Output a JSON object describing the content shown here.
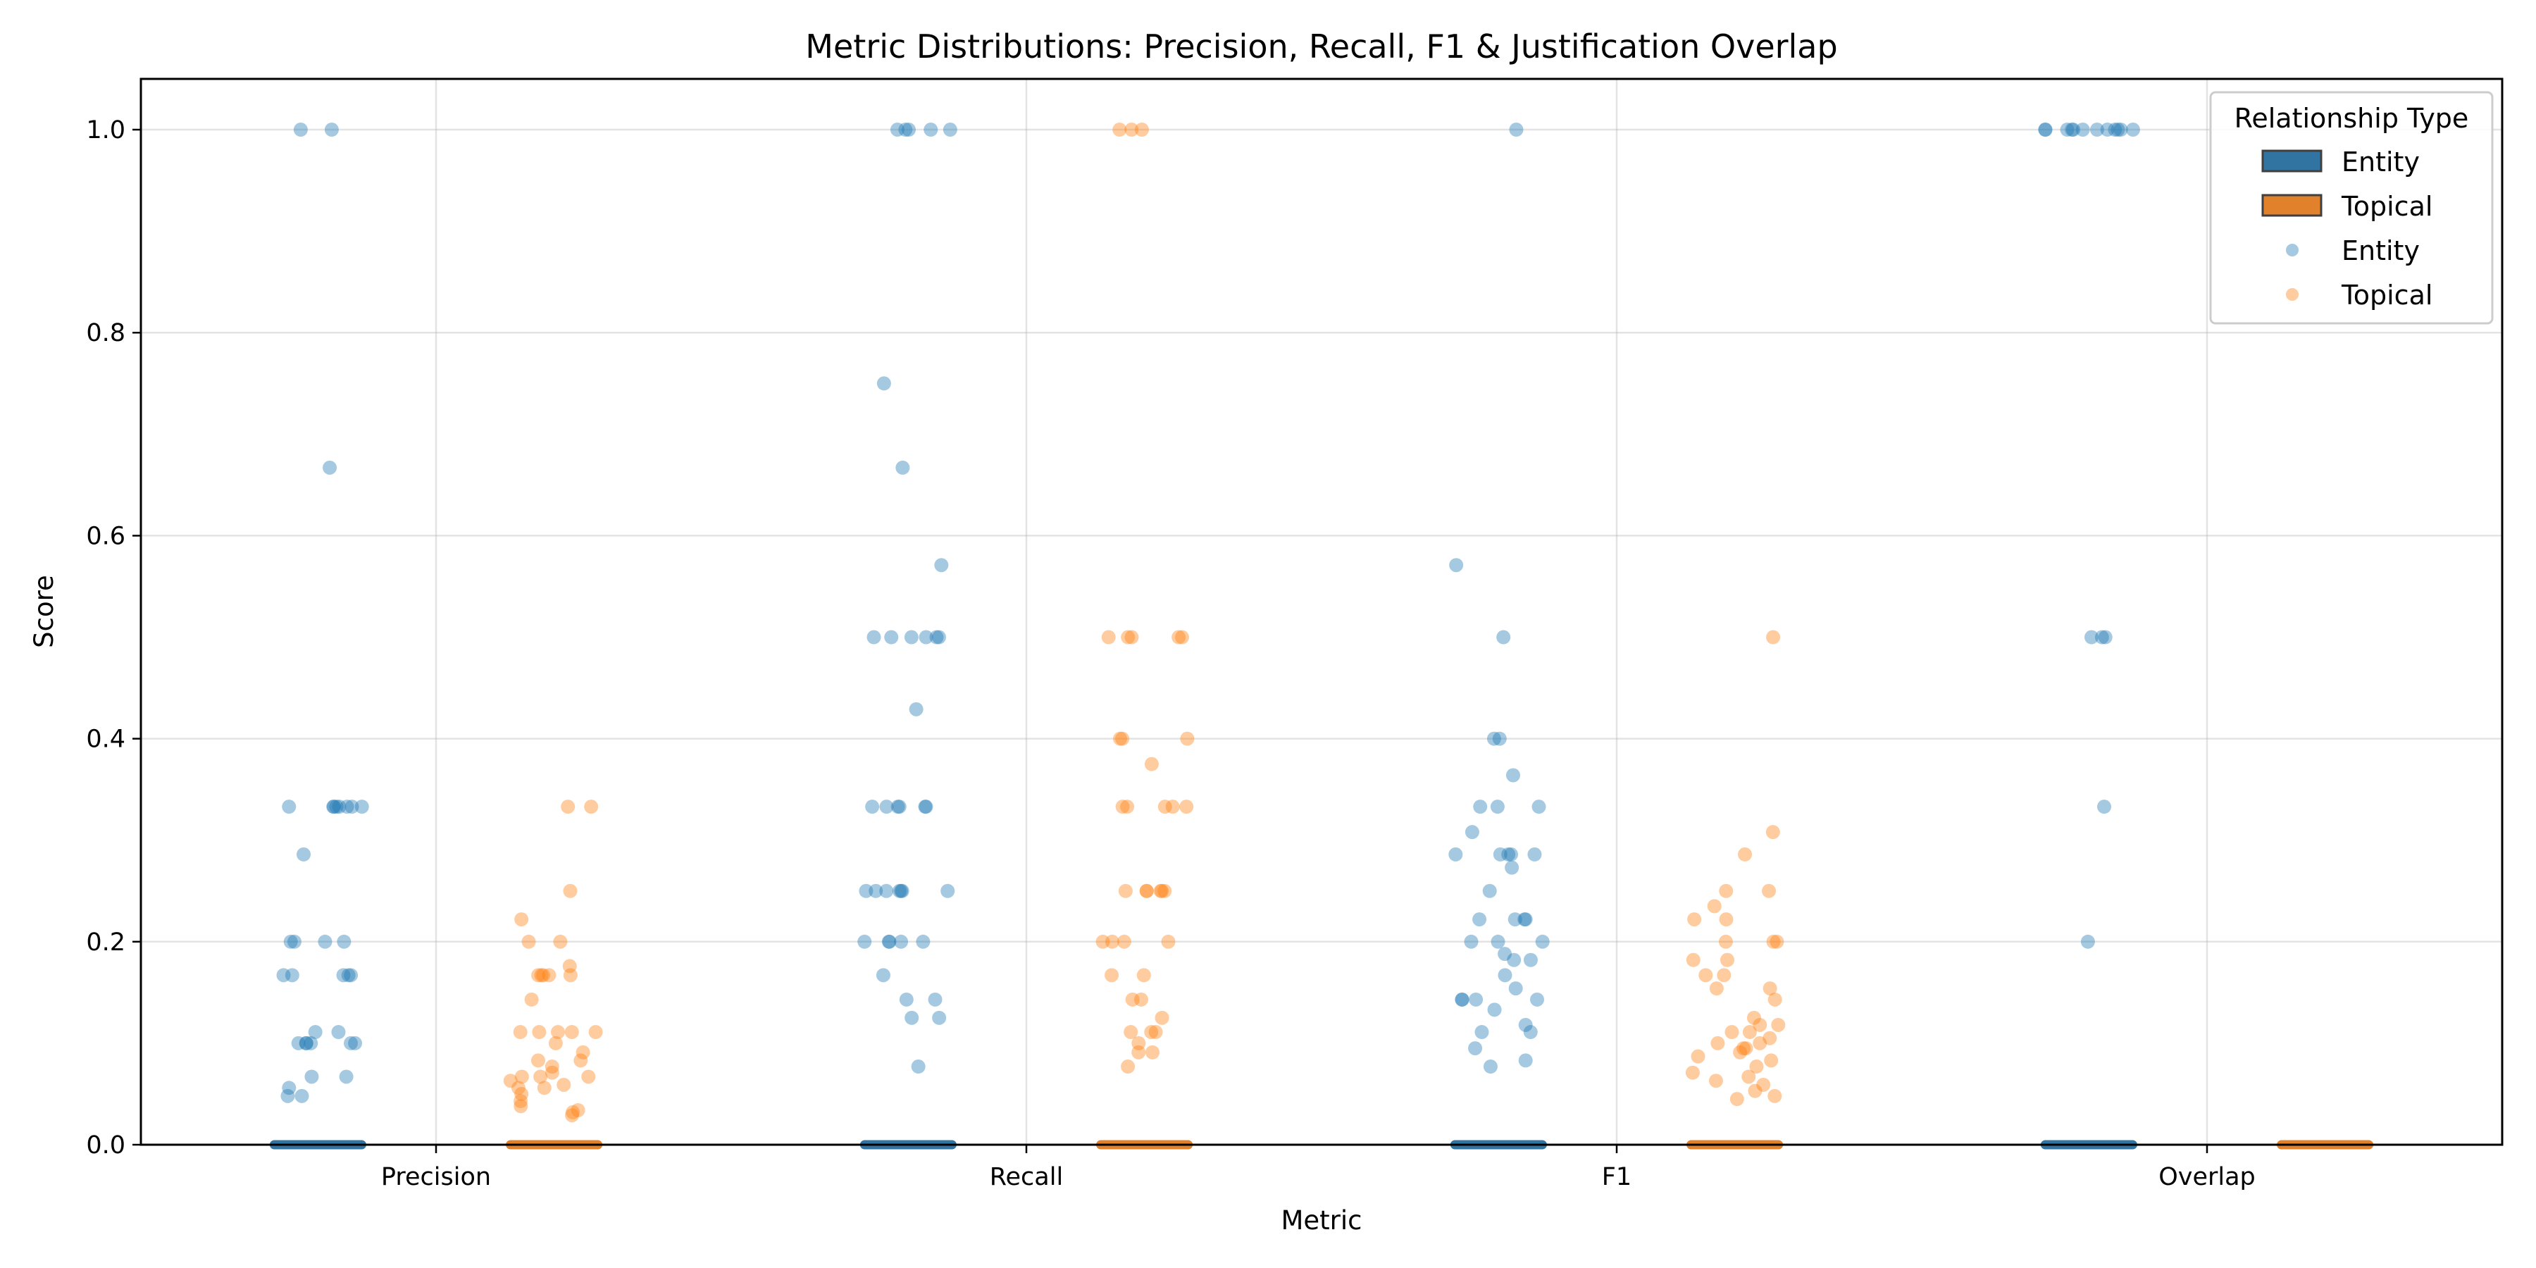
{
  "chart_data": {
    "type": "scatter",
    "subtype": "strip plot with box plots",
    "title": "Metric Distributions: Precision, Recall, F1 & Justification Overlap",
    "xlabel": "Metric",
    "ylabel": "Score",
    "categories": [
      "Precision",
      "Recall",
      "F1",
      "Overlap"
    ],
    "ylim": [
      0,
      1.05
    ],
    "yticks": [
      "0.0",
      "0.2",
      "0.4",
      "0.6",
      "0.8",
      "1.0"
    ],
    "grid": true,
    "legend": {
      "title": "Relationship Type",
      "placement": "top-right",
      "box_entries": [
        "Entity",
        "Topical"
      ],
      "point_entries": [
        "Entity",
        "Topical"
      ]
    },
    "colors": {
      "Entity_box": "#3274a1",
      "Topical_box": "#e1812c",
      "Entity_point": "#1f77b4",
      "Topical_point": "#ff7f0e"
    },
    "series": [
      {
        "name": "Entity",
        "box": {
          "median": 0.0,
          "q1": 0.0,
          "q3": 0.0
        },
        "points": {
          "Precision": [
            1.0,
            1.0,
            0.667,
            0.333,
            0.333,
            0.333,
            0.333,
            0.333,
            0.333,
            0.333,
            0.333,
            0.286,
            0.2,
            0.2,
            0.2,
            0.2,
            0.167,
            0.167,
            0.167,
            0.167,
            0.167,
            0.111,
            0.111,
            0.1,
            0.1,
            0.1,
            0.1,
            0.1,
            0.1,
            0.067,
            0.067,
            0.056,
            0.048,
            0.048
          ],
          "Recall": [
            1.0,
            1.0,
            1.0,
            1.0,
            1.0,
            0.75,
            0.667,
            0.571,
            0.5,
            0.5,
            0.5,
            0.5,
            0.5,
            0.5,
            0.429,
            0.333,
            0.333,
            0.333,
            0.333,
            0.333,
            0.333,
            0.25,
            0.25,
            0.25,
            0.25,
            0.25,
            0.25,
            0.25,
            0.2,
            0.2,
            0.2,
            0.2,
            0.2,
            0.167,
            0.143,
            0.143,
            0.125,
            0.125,
            0.077
          ],
          "F1": [
            1.0,
            0.571,
            0.5,
            0.4,
            0.4,
            0.364,
            0.333,
            0.333,
            0.333,
            0.308,
            0.286,
            0.286,
            0.286,
            0.286,
            0.286,
            0.273,
            0.25,
            0.222,
            0.222,
            0.222,
            0.222,
            0.2,
            0.2,
            0.2,
            0.188,
            0.182,
            0.182,
            0.167,
            0.154,
            0.143,
            0.143,
            0.143,
            0.143,
            0.133,
            0.118,
            0.111,
            0.111,
            0.095,
            0.083,
            0.077
          ],
          "Overlap": [
            1.0,
            1.0,
            1.0,
            1.0,
            1.0,
            1.0,
            1.0,
            1.0,
            1.0,
            1.0,
            1.0,
            1.0,
            0.5,
            0.5,
            0.5,
            0.333,
            0.2
          ]
        }
      },
      {
        "name": "Topical",
        "box": {
          "median": 0.0,
          "q1": 0.0,
          "q3": 0.0
        },
        "points": {
          "Precision": [
            0.333,
            0.333,
            0.25,
            0.222,
            0.2,
            0.2,
            0.176,
            0.167,
            0.167,
            0.167,
            0.167,
            0.167,
            0.143,
            0.111,
            0.111,
            0.111,
            0.111,
            0.111,
            0.1,
            0.091,
            0.083,
            0.083,
            0.077,
            0.071,
            0.067,
            0.067,
            0.067,
            0.063,
            0.059,
            0.056,
            0.056,
            0.05,
            0.043,
            0.038,
            0.034,
            0.032,
            0.029
          ],
          "Recall": [
            1.0,
            1.0,
            1.0,
            0.5,
            0.5,
            0.5,
            0.5,
            0.5,
            0.4,
            0.4,
            0.4,
            0.375,
            0.333,
            0.333,
            0.333,
            0.333,
            0.333,
            0.25,
            0.25,
            0.25,
            0.25,
            0.25,
            0.25,
            0.2,
            0.2,
            0.2,
            0.2,
            0.167,
            0.167,
            0.143,
            0.143,
            0.125,
            0.111,
            0.111,
            0.111,
            0.1,
            0.091,
            0.091,
            0.077
          ],
          "F1": [
            0.5,
            0.308,
            0.286,
            0.25,
            0.25,
            0.235,
            0.222,
            0.222,
            0.2,
            0.2,
            0.2,
            0.182,
            0.182,
            0.167,
            0.167,
            0.154,
            0.154,
            0.143,
            0.125,
            0.118,
            0.118,
            0.111,
            0.111,
            0.105,
            0.1,
            0.1,
            0.095,
            0.095,
            0.091,
            0.087,
            0.083,
            0.077,
            0.071,
            0.067,
            0.063,
            0.059,
            0.053,
            0.048,
            0.045
          ],
          "Overlap": []
        }
      }
    ]
  }
}
